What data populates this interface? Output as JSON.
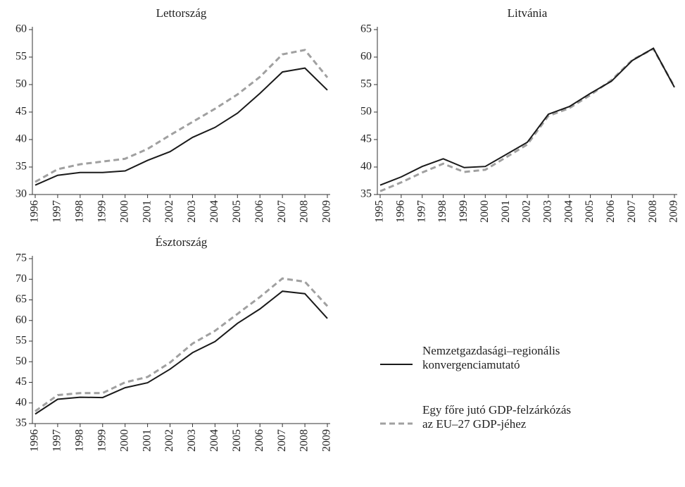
{
  "chart_data": [
    {
      "type": "line",
      "title": "Lettország",
      "categories": [
        "1996",
        "1997",
        "1998",
        "1999",
        "2000",
        "2001",
        "2002",
        "2003",
        "2004",
        "2005",
        "2006",
        "2007",
        "2008",
        "2009"
      ],
      "ylim": [
        30,
        60
      ],
      "yticks": [
        30,
        35,
        40,
        45,
        50,
        55,
        60
      ],
      "series": [
        {
          "name": "Nemzetgazdasági–regionális\nkonvergenciamutató",
          "color": "#1a1a1a",
          "line_style": "solid",
          "values": [
            31.7,
            33.5,
            34.0,
            34.0,
            34.3,
            36.2,
            37.8,
            40.4,
            42.2,
            44.8,
            48.4,
            52.3,
            53.0,
            49.0
          ]
        },
        {
          "name": "Egy főre jutó GDP-felzárkózás\naz EU–27 GDP-jéhez",
          "color": "#a0a0a0",
          "line_style": "dashed",
          "values": [
            32.3,
            34.6,
            35.5,
            36.0,
            36.5,
            38.3,
            40.8,
            43.2,
            45.6,
            48.2,
            51.4,
            55.5,
            56.3,
            51.3
          ]
        }
      ]
    },
    {
      "type": "line",
      "title": "Litvánia",
      "categories": [
        "1995",
        "1996",
        "1997",
        "1998",
        "1999",
        "2000",
        "2001",
        "2002",
        "2003",
        "2004",
        "2005",
        "2006",
        "2007",
        "2008",
        "2009"
      ],
      "ylim": [
        35,
        65
      ],
      "yticks": [
        35,
        40,
        45,
        50,
        55,
        60,
        65
      ],
      "series": [
        {
          "color": "#1a1a1a",
          "line_style": "solid",
          "values": [
            36.7,
            38.2,
            40.1,
            41.5,
            39.9,
            40.1,
            42.3,
            44.5,
            49.6,
            51.0,
            53.4,
            55.6,
            59.4,
            61.6,
            54.5
          ]
        },
        {
          "color": "#a0a0a0",
          "line_style": "dashed",
          "values": [
            35.6,
            37.2,
            39.0,
            40.6,
            39.1,
            39.5,
            41.8,
            44.1,
            49.3,
            50.7,
            53.1,
            55.8,
            59.5,
            61.5,
            54.6
          ]
        }
      ]
    },
    {
      "type": "line",
      "title": "Észtország",
      "categories": [
        "1996",
        "1997",
        "1998",
        "1999",
        "2000",
        "2001",
        "2002",
        "2003",
        "2004",
        "2005",
        "2006",
        "2007",
        "2008",
        "2009"
      ],
      "ylim": [
        35,
        75
      ],
      "yticks": [
        35,
        40,
        45,
        50,
        55,
        60,
        65,
        70,
        75
      ],
      "series": [
        {
          "color": "#1a1a1a",
          "line_style": "solid",
          "values": [
            37.3,
            40.9,
            41.4,
            41.3,
            43.7,
            44.9,
            48.2,
            52.2,
            54.9,
            59.3,
            62.8,
            67.1,
            66.5,
            60.5
          ]
        },
        {
          "color": "#a0a0a0",
          "line_style": "dashed",
          "values": [
            38.0,
            41.9,
            42.4,
            42.4,
            45.0,
            46.3,
            49.8,
            54.4,
            57.5,
            61.6,
            65.7,
            70.2,
            69.4,
            63.5
          ]
        }
      ]
    }
  ]
}
